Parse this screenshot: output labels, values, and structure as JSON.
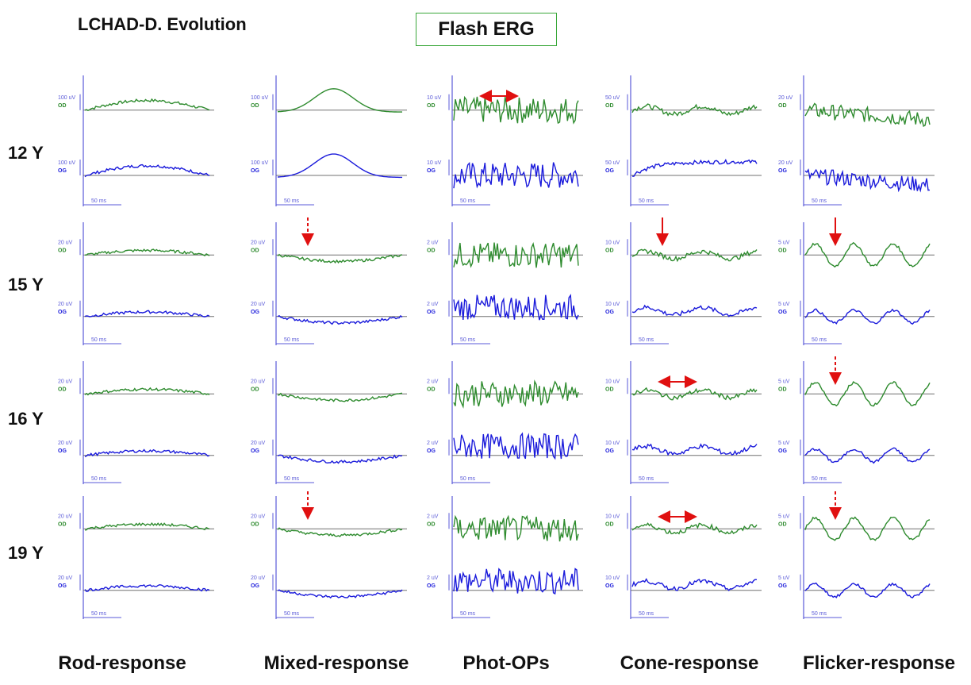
{
  "header": {
    "title": "LCHAD-D. Evolution",
    "box_label": "Flash ERG"
  },
  "rows": [
    "12 Y",
    "15 Y",
    "16 Y",
    "19 Y"
  ],
  "columns": [
    "Rod-response",
    "Mixed-response",
    "Phot-OPs",
    "Cone-response",
    "Flicker-response"
  ],
  "eyes": [
    "OD",
    "OG"
  ],
  "scales": [
    [
      "100 uV",
      "100 uV",
      "10 uV",
      "50 uV",
      "20 uV"
    ],
    [
      "20 uV",
      "20 uV",
      "2 uV",
      "10 uV",
      "5 uV"
    ],
    [
      "20 uV",
      "20 uV",
      "2 uV",
      "10 uV",
      "5 uV"
    ],
    [
      "20 uV",
      "20 uV",
      "2 uV",
      "10 uV",
      "5 uV"
    ]
  ],
  "time_scale": "50 ms",
  "colors": {
    "OD": "#2e8b2e",
    "OG": "#1a1adb",
    "axis": "#5a5ad8",
    "baseline": "#707070",
    "annotation": "#e01010",
    "box_border": "#3aa83a"
  },
  "chart_data": {
    "type": "line",
    "title": "Flash ERG",
    "subtitle": "LCHAD-D. Evolution",
    "categories": [
      "12 Y",
      "15 Y",
      "16 Y",
      "19 Y"
    ],
    "series": [
      {
        "name": "Rod-response"
      },
      {
        "name": "Mixed-response"
      },
      {
        "name": "Phot-OPs"
      },
      {
        "name": "Cone-response"
      },
      {
        "name": "Flicker-response"
      }
    ],
    "traces": "OD (green) and OG (blue) waveforms per age and response type",
    "annotations": [
      {
        "row": "12 Y",
        "column": "Phot-OPs",
        "kind": "double-arrow"
      },
      {
        "row": "15 Y",
        "column": "Mixed-response",
        "kind": "dashed-down-arrow"
      },
      {
        "row": "15 Y",
        "column": "Cone-response",
        "kind": "down-arrow"
      },
      {
        "row": "15 Y",
        "column": "Flicker-response",
        "kind": "down-arrow"
      },
      {
        "row": "16 Y",
        "column": "Cone-response",
        "kind": "double-arrow"
      },
      {
        "row": "16 Y",
        "column": "Flicker-response",
        "kind": "dashed-down-arrow"
      },
      {
        "row": "19 Y",
        "column": "Mixed-response",
        "kind": "dashed-down-arrow"
      },
      {
        "row": "19 Y",
        "column": "Cone-response",
        "kind": "double-arrow"
      },
      {
        "row": "19 Y",
        "column": "Flicker-response",
        "kind": "dashed-down-arrow"
      }
    ],
    "grid": false
  }
}
